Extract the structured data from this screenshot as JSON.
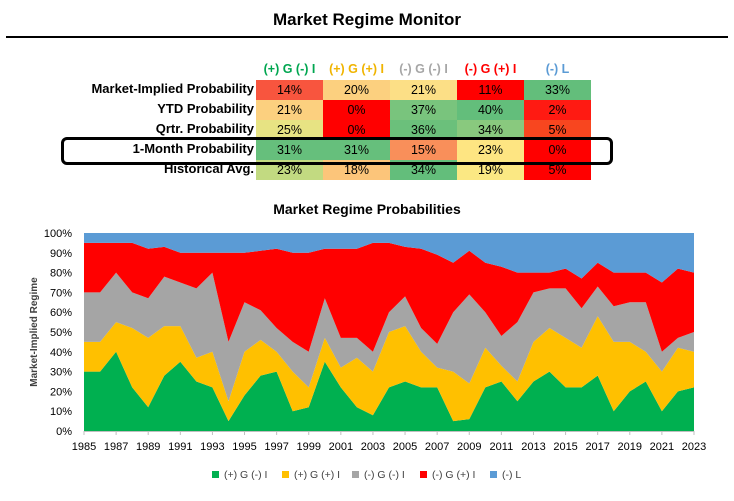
{
  "header": {
    "title": "Market Regime Monitor"
  },
  "table": {
    "columns": [
      {
        "label": "(+) G (-) I",
        "color": "#00a650"
      },
      {
        "label": "(+) G (+) I",
        "color": "#f0b400"
      },
      {
        "label": "(-) G (-) I",
        "color": "#a6a6a6"
      },
      {
        "label": "(-) G (+) I",
        "color": "#ff0000"
      },
      {
        "label": "(-) L",
        "color": "#5b9bd5"
      }
    ],
    "rows": [
      {
        "label": "Market-Implied Probability",
        "cells": [
          "14%",
          "20%",
          "21%",
          "11%",
          "33%"
        ],
        "colors": [
          "#f8553e",
          "#fcd07f",
          "#fcdf86",
          "#ff0000",
          "#63be7b"
        ]
      },
      {
        "label": "YTD Probability",
        "cells": [
          "21%",
          "0%",
          "37%",
          "40%",
          "2%"
        ],
        "colors": [
          "#fcd07f",
          "#ff0000",
          "#79c47d",
          "#63be7b",
          "#ff1a12"
        ]
      },
      {
        "label": "Qrtr. Probability",
        "cells": [
          "25%",
          "0%",
          "36%",
          "34%",
          "5%"
        ],
        "colors": [
          "#e7e383",
          "#ff0000",
          "#6bc07b",
          "#89c97e",
          "#f8461f"
        ]
      },
      {
        "label": "1-Month Probability",
        "cells": [
          "31%",
          "31%",
          "15%",
          "23%",
          "0%"
        ],
        "colors": [
          "#66bf7c",
          "#66bf7c",
          "#f98f5a",
          "#fee582",
          "#ff0000"
        ]
      },
      {
        "label": "Historical Avg.",
        "cells": [
          "23%",
          "18%",
          "34%",
          "19%",
          "5%"
        ],
        "colors": [
          "#c2da81",
          "#fcc57a",
          "#63be7b",
          "#fbe883",
          "#ff0000"
        ]
      }
    ]
  },
  "chart_data": {
    "type": "area",
    "stacked": true,
    "normalized": true,
    "title": "Market Regime Probabilities",
    "ylabel": "Market-Implied Regime",
    "xlabel": "",
    "x_ticks": [
      "1985",
      "1987",
      "1989",
      "1991",
      "1993",
      "1995",
      "1997",
      "1999",
      "2001",
      "2003",
      "2005",
      "2007",
      "2009",
      "2011",
      "2013",
      "2015",
      "2017",
      "2019",
      "2021",
      "2023"
    ],
    "y_ticks": [
      "0%",
      "10%",
      "20%",
      "30%",
      "40%",
      "50%",
      "60%",
      "70%",
      "80%",
      "90%",
      "100%"
    ],
    "ylim": [
      0,
      100
    ],
    "xlim": [
      1985,
      2023
    ],
    "grid": false,
    "legend_position": "bottom",
    "x": [
      1986,
      1987,
      1988,
      1989,
      1990,
      1991,
      1992,
      1993,
      1994,
      1995,
      1996,
      1997,
      1998,
      1999,
      2000,
      2001,
      2002,
      2003,
      2004,
      2005,
      2006,
      2007,
      2008,
      2009,
      2010,
      2011,
      2012,
      2013,
      2014,
      2015,
      2016,
      2017,
      2018,
      2019,
      2020,
      2021,
      2022,
      2023
    ],
    "series": [
      {
        "name": "(+) G (-) I",
        "color": "#00b050",
        "values": [
          30,
          40,
          22,
          12,
          28,
          35,
          25,
          22,
          5,
          18,
          28,
          30,
          10,
          12,
          35,
          22,
          12,
          8,
          22,
          25,
          22,
          22,
          5,
          6,
          22,
          25,
          15,
          25,
          30,
          22,
          22,
          28,
          10,
          20,
          25,
          10,
          20,
          22
        ]
      },
      {
        "name": "(+) G (+) I",
        "color": "#ffc000",
        "values": [
          15,
          15,
          30,
          35,
          25,
          18,
          12,
          18,
          10,
          22,
          18,
          10,
          20,
          10,
          12,
          10,
          25,
          22,
          28,
          28,
          18,
          10,
          25,
          18,
          20,
          8,
          10,
          20,
          22,
          25,
          20,
          30,
          35,
          25,
          15,
          20,
          22,
          18
        ]
      },
      {
        "name": "(-) G (-) I",
        "color": "#a5a5a5",
        "values": [
          25,
          25,
          18,
          20,
          25,
          22,
          35,
          40,
          30,
          25,
          15,
          12,
          15,
          18,
          20,
          15,
          10,
          10,
          10,
          15,
          12,
          12,
          30,
          45,
          18,
          15,
          30,
          25,
          20,
          25,
          20,
          15,
          18,
          20,
          25,
          10,
          5,
          10
        ]
      },
      {
        "name": "(-) G (+) I",
        "color": "#ff0000",
        "values": [
          25,
          15,
          25,
          25,
          15,
          15,
          18,
          10,
          45,
          25,
          30,
          40,
          45,
          50,
          25,
          45,
          45,
          55,
          35,
          25,
          40,
          45,
          25,
          22,
          25,
          35,
          25,
          10,
          8,
          10,
          15,
          12,
          17,
          15,
          15,
          35,
          35,
          30
        ]
      },
      {
        "name": "(-) L",
        "color": "#5b9bd5",
        "values": [
          5,
          5,
          5,
          8,
          7,
          10,
          10,
          10,
          10,
          10,
          9,
          8,
          10,
          10,
          8,
          8,
          8,
          5,
          5,
          7,
          8,
          11,
          15,
          9,
          15,
          17,
          20,
          20,
          20,
          18,
          23,
          15,
          20,
          20,
          20,
          25,
          18,
          20
        ]
      }
    ]
  }
}
